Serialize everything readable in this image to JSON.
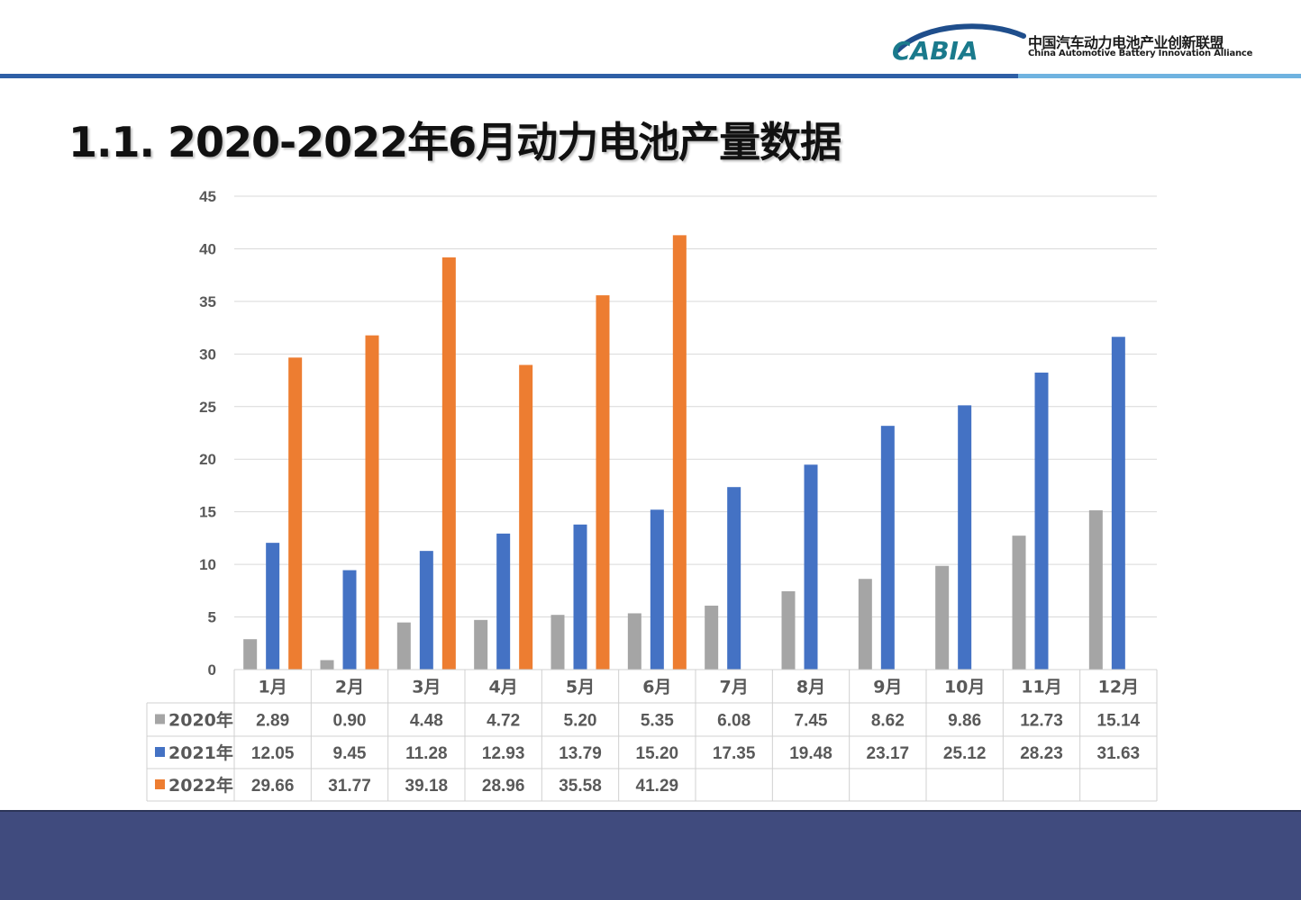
{
  "header": {
    "org_cn": "中国汽车动力电池产业创新联盟",
    "org_en": "China Automotive Battery Innovation Alliance",
    "logo_text": "CABIA",
    "colors": {
      "brand_blue": "#1f4e8c",
      "brand_teal": "#1a8a8a",
      "rule_blue": "#2e5fa6",
      "rule_light": "#6fb3e0"
    }
  },
  "page": {
    "title": "1.1.  2020-2022年6月动力电池产量数据"
  },
  "footer": {
    "color": "#404b7e"
  },
  "chart_data": {
    "type": "bar",
    "categories": [
      "1月",
      "2月",
      "3月",
      "4月",
      "5月",
      "6月",
      "7月",
      "8月",
      "9月",
      "10月",
      "11月",
      "12月"
    ],
    "series": [
      {
        "name": "2020年",
        "color": "#a5a5a5",
        "values": [
          2.89,
          0.9,
          4.48,
          4.72,
          5.2,
          5.35,
          6.08,
          7.45,
          8.62,
          9.86,
          12.73,
          15.14
        ]
      },
      {
        "name": "2021年",
        "color": "#4472c4",
        "values": [
          12.05,
          9.45,
          11.28,
          12.93,
          13.79,
          15.2,
          17.35,
          19.48,
          23.17,
          25.12,
          28.23,
          31.63
        ]
      },
      {
        "name": "2022年",
        "color": "#ed7d31",
        "values": [
          29.66,
          31.77,
          39.18,
          28.96,
          35.58,
          41.29,
          null,
          null,
          null,
          null,
          null,
          null
        ]
      }
    ],
    "table_labels": {
      "2020年": [
        "2.89",
        "0.90",
        "4.48",
        "4.72",
        "5.20",
        "5.35",
        "6.08",
        "7.45",
        "8.62",
        "9.86",
        "12.73",
        "15.14"
      ],
      "2021年": [
        "12.05",
        "9.45",
        "11.28",
        "12.93",
        "13.79",
        "15.20",
        "17.35",
        "19.48",
        "23.17",
        "25.12",
        "28.23",
        "31.63"
      ],
      "2022年": [
        "29.66",
        "31.77",
        "39.18",
        "28.96",
        "35.58",
        "41.29",
        "",
        "",
        "",
        "",
        "",
        ""
      ]
    },
    "yticks": [
      "0",
      "5",
      "10",
      "15",
      "20",
      "25",
      "30",
      "35",
      "40",
      "45"
    ],
    "ylim": [
      0,
      45
    ],
    "grid": true,
    "legend": "data-table"
  }
}
